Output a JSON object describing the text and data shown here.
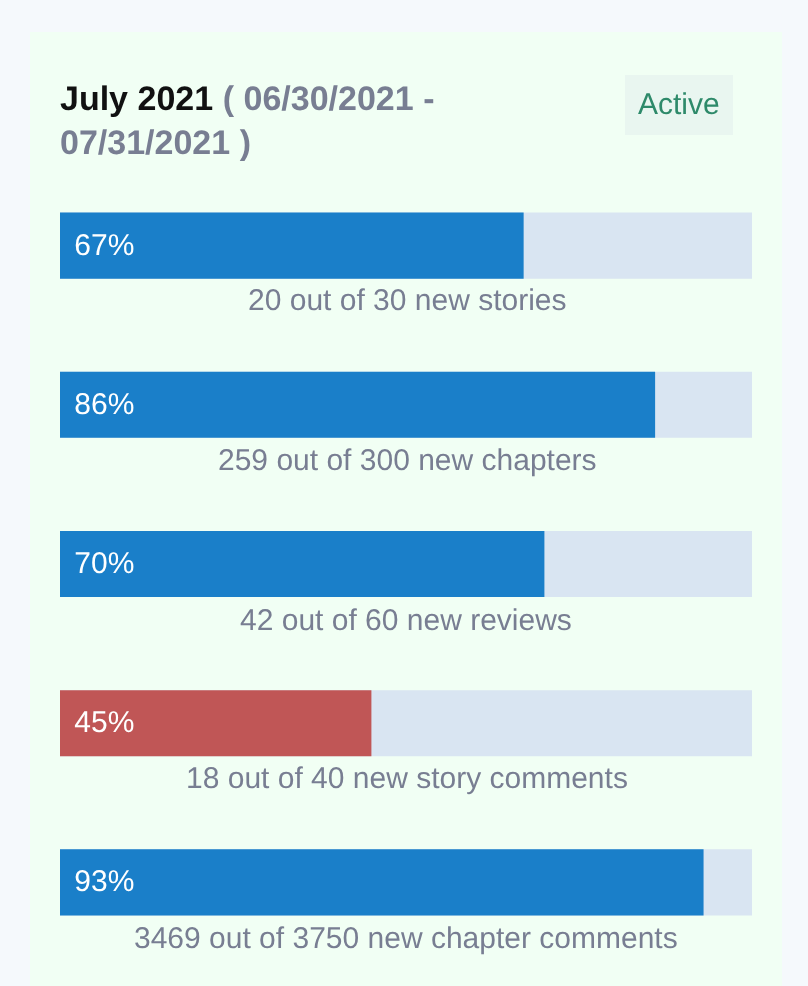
{
  "chart_data": {
    "type": "bar",
    "orientation": "horizontal",
    "title": "July 2021",
    "subtitle": "( 06/30/2021 - 07/31/2021 )",
    "annotations": [
      "Active"
    ],
    "categories": [
      "20 out of 30 new stories",
      "259 out of 300 new chapters",
      "42 out of 60 new reviews",
      "18 out of 40 new story comments",
      "3469 out of 3750 new chapter comments"
    ],
    "values": [
      67,
      86,
      70,
      45,
      93
    ],
    "colors": [
      "#1a7fc9",
      "#1a7fc9",
      "#1a7fc9",
      "#c05656",
      "#1a7fc9"
    ],
    "value_labels": [
      "67%",
      "86%",
      "70%",
      "45%",
      "93%"
    ],
    "xlim": [
      0,
      100
    ],
    "tick_labels": false
  }
}
